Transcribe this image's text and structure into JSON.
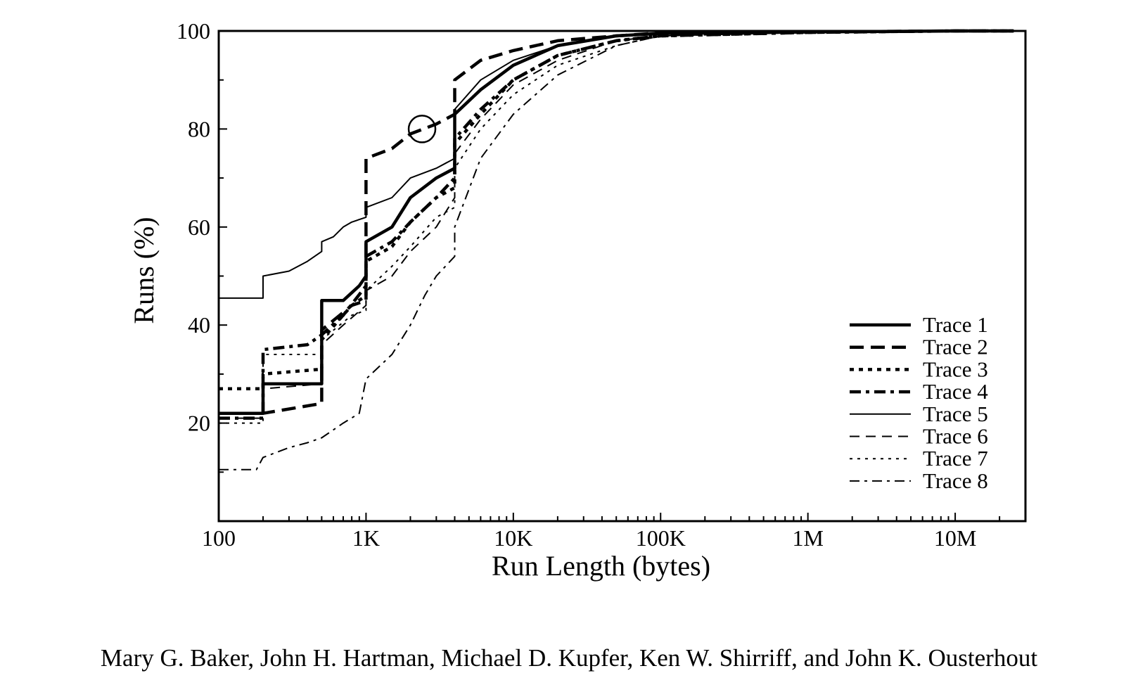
{
  "caption": "Mary G. Baker, John H. Hartman, Michael D. Kupfer, Ken W. Shirriff, and John K. Ousterhout",
  "chart_data": {
    "type": "line",
    "title": "",
    "xlabel": "Run Length (bytes)",
    "ylabel": "Runs (%)",
    "xscale": "log",
    "xlim": [
      100,
      30000000
    ],
    "ylim": [
      0,
      100
    ],
    "xticks": [
      {
        "value": 100,
        "label": "100"
      },
      {
        "value": 1000,
        "label": "1K"
      },
      {
        "value": 10000,
        "label": "10K"
      },
      {
        "value": 100000,
        "label": "100K"
      },
      {
        "value": 1000000,
        "label": "1M"
      },
      {
        "value": 10000000,
        "label": "10M"
      }
    ],
    "yticks": [
      {
        "value": 20,
        "label": "20"
      },
      {
        "value": 40,
        "label": "40"
      },
      {
        "value": 60,
        "label": "60"
      },
      {
        "value": 80,
        "label": "80"
      },
      {
        "value": 100,
        "label": "100"
      }
    ],
    "grid": false,
    "legend_position": "bottom-right",
    "annotations": [
      {
        "type": "circle",
        "x": 2400,
        "y": 80
      }
    ],
    "series": [
      {
        "name": "Trace 1",
        "style": "thick-solid",
        "points": [
          [
            100,
            22
          ],
          [
            200,
            22
          ],
          [
            200,
            28
          ],
          [
            500,
            28
          ],
          [
            500,
            45
          ],
          [
            700,
            45
          ],
          [
            900,
            48
          ],
          [
            1000,
            50
          ],
          [
            1000,
            57
          ],
          [
            1500,
            60
          ],
          [
            2000,
            66
          ],
          [
            3000,
            70
          ],
          [
            4000,
            72
          ],
          [
            4000,
            83
          ],
          [
            6000,
            88
          ],
          [
            10000,
            93
          ],
          [
            20000,
            97
          ],
          [
            50000,
            99
          ],
          [
            100000,
            99.5
          ],
          [
            1000000,
            99.8
          ],
          [
            10000000,
            100
          ],
          [
            25000000,
            100
          ]
        ]
      },
      {
        "name": "Trace 2",
        "style": "thick-dashed",
        "points": [
          [
            100,
            22
          ],
          [
            200,
            22
          ],
          [
            500,
            24
          ],
          [
            500,
            39
          ],
          [
            800,
            44
          ],
          [
            1000,
            45
          ],
          [
            1000,
            74
          ],
          [
            1500,
            76
          ],
          [
            2000,
            79
          ],
          [
            3000,
            81
          ],
          [
            4000,
            83
          ],
          [
            4000,
            90
          ],
          [
            6000,
            94
          ],
          [
            10000,
            96
          ],
          [
            20000,
            98
          ],
          [
            50000,
            99
          ],
          [
            100000,
            99.6
          ],
          [
            1000000,
            99.8
          ],
          [
            10000000,
            100
          ],
          [
            25000000,
            100
          ]
        ]
      },
      {
        "name": "Trace 3",
        "style": "thick-dotted",
        "points": [
          [
            100,
            27
          ],
          [
            200,
            27
          ],
          [
            200,
            30
          ],
          [
            500,
            31
          ],
          [
            500,
            37
          ],
          [
            800,
            44
          ],
          [
            1000,
            46
          ],
          [
            1000,
            53
          ],
          [
            1500,
            56
          ],
          [
            2000,
            61
          ],
          [
            3000,
            66
          ],
          [
            4000,
            68
          ],
          [
            4000,
            77
          ],
          [
            6000,
            83
          ],
          [
            10000,
            90
          ],
          [
            20000,
            95
          ],
          [
            50000,
            98
          ],
          [
            100000,
            99
          ],
          [
            1000000,
            99.7
          ],
          [
            10000000,
            100
          ],
          [
            25000000,
            100
          ]
        ]
      },
      {
        "name": "Trace 4",
        "style": "thick-dashdot",
        "points": [
          [
            100,
            21
          ],
          [
            200,
            21
          ],
          [
            200,
            35
          ],
          [
            400,
            36
          ],
          [
            500,
            38
          ],
          [
            700,
            42
          ],
          [
            1000,
            48
          ],
          [
            1000,
            54
          ],
          [
            1500,
            57
          ],
          [
            2000,
            61
          ],
          [
            3000,
            66
          ],
          [
            4000,
            70
          ],
          [
            4000,
            78
          ],
          [
            6000,
            84
          ],
          [
            10000,
            90
          ],
          [
            20000,
            95
          ],
          [
            50000,
            98
          ],
          [
            100000,
            99
          ],
          [
            1000000,
            99.7
          ],
          [
            10000000,
            100
          ],
          [
            25000000,
            100
          ]
        ]
      },
      {
        "name": "Trace 5",
        "style": "thin-solid",
        "points": [
          [
            100,
            45.5
          ],
          [
            200,
            45.5
          ],
          [
            200,
            50
          ],
          [
            300,
            51
          ],
          [
            400,
            53
          ],
          [
            500,
            55
          ],
          [
            500,
            57
          ],
          [
            600,
            58
          ],
          [
            700,
            60
          ],
          [
            800,
            61
          ],
          [
            1000,
            62
          ],
          [
            1000,
            64
          ],
          [
            1500,
            66
          ],
          [
            2000,
            70
          ],
          [
            3000,
            72
          ],
          [
            4000,
            74
          ],
          [
            4000,
            84
          ],
          [
            6000,
            90
          ],
          [
            10000,
            94
          ],
          [
            20000,
            97
          ],
          [
            50000,
            99
          ],
          [
            100000,
            99.5
          ],
          [
            1000000,
            99.8
          ],
          [
            10000000,
            100
          ],
          [
            25000000,
            100
          ]
        ]
      },
      {
        "name": "Trace 6",
        "style": "thin-dashed",
        "points": [
          [
            100,
            21
          ],
          [
            200,
            21
          ],
          [
            200,
            27
          ],
          [
            500,
            28
          ],
          [
            500,
            36
          ],
          [
            700,
            40
          ],
          [
            1000,
            44
          ],
          [
            1000,
            47
          ],
          [
            1500,
            50
          ],
          [
            2000,
            55
          ],
          [
            3000,
            60
          ],
          [
            4000,
            66
          ],
          [
            4000,
            75
          ],
          [
            6000,
            82
          ],
          [
            10000,
            89
          ],
          [
            20000,
            94
          ],
          [
            50000,
            98
          ],
          [
            100000,
            99
          ],
          [
            1000000,
            99.7
          ],
          [
            10000000,
            100
          ],
          [
            25000000,
            100
          ]
        ]
      },
      {
        "name": "Trace 7",
        "style": "thin-dotted",
        "points": [
          [
            100,
            20
          ],
          [
            200,
            20
          ],
          [
            200,
            34
          ],
          [
            500,
            34
          ],
          [
            500,
            37
          ],
          [
            800,
            42
          ],
          [
            1000,
            43
          ],
          [
            1000,
            47
          ],
          [
            1500,
            52
          ],
          [
            2000,
            56
          ],
          [
            3000,
            62
          ],
          [
            4000,
            64
          ],
          [
            4000,
            72
          ],
          [
            6000,
            80
          ],
          [
            10000,
            87
          ],
          [
            20000,
            93
          ],
          [
            50000,
            97
          ],
          [
            100000,
            99
          ],
          [
            1000000,
            99.7
          ],
          [
            10000000,
            100
          ],
          [
            25000000,
            100
          ]
        ]
      },
      {
        "name": "Trace 8",
        "style": "thin-dashdot",
        "points": [
          [
            100,
            10.5
          ],
          [
            180,
            10.5
          ],
          [
            200,
            13
          ],
          [
            300,
            15
          ],
          [
            400,
            16
          ],
          [
            500,
            17
          ],
          [
            700,
            20
          ],
          [
            900,
            22
          ],
          [
            1000,
            29
          ],
          [
            1500,
            34
          ],
          [
            2000,
            40
          ],
          [
            2500,
            46
          ],
          [
            3000,
            50
          ],
          [
            4000,
            54
          ],
          [
            4000,
            60
          ],
          [
            6000,
            74
          ],
          [
            10000,
            83
          ],
          [
            20000,
            91
          ],
          [
            50000,
            97
          ],
          [
            100000,
            99
          ],
          [
            1000000,
            99.7
          ],
          [
            10000000,
            100
          ],
          [
            25000000,
            100
          ]
        ]
      }
    ]
  }
}
